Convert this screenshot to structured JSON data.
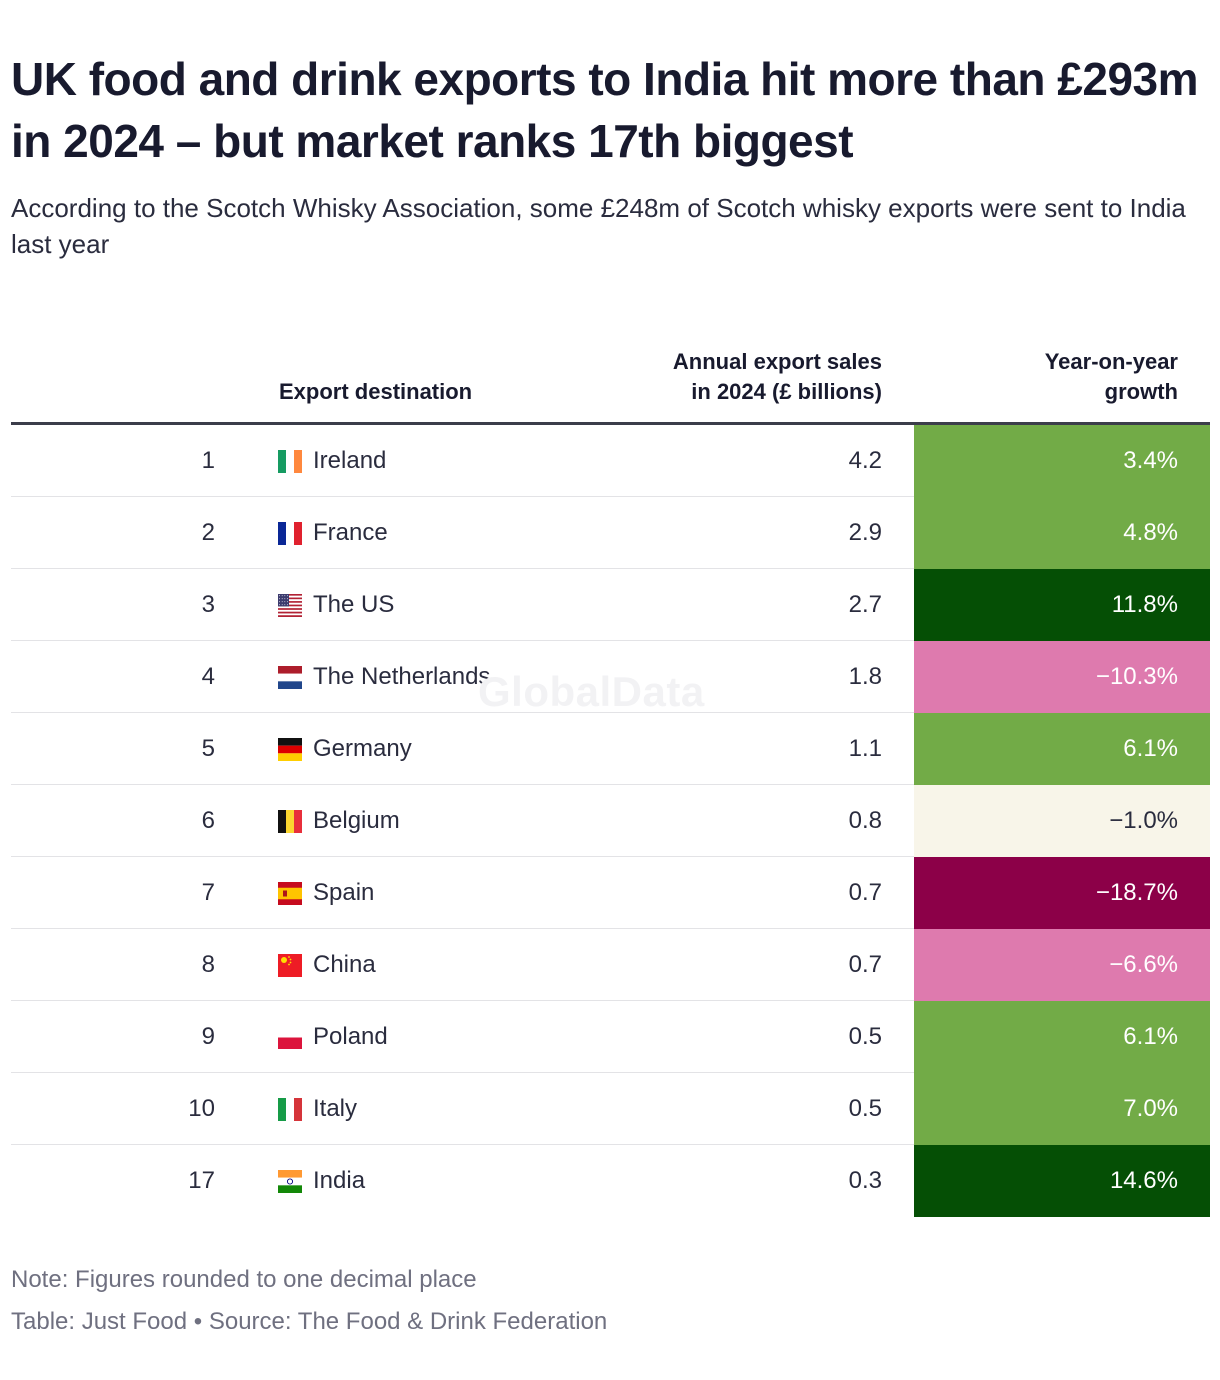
{
  "title": "UK food and drink exports to India hit more than £293m in 2024 – but market ranks 17th biggest",
  "subtitle": "According to the Scotch Whisky Association, some £248m of Scotch whisky exports were sent to India last year",
  "watermark": "GlobalData",
  "chart_data": {
    "type": "table",
    "columns": [
      "",
      "Export destination",
      "Annual export sales in 2024 (£ billions)",
      "Year-on-year growth"
    ],
    "column_headers": {
      "destination": "Export destination",
      "sales": [
        "Annual export sales",
        "in 2024 (£ billions)"
      ],
      "growth": [
        "Year-on-year",
        "growth"
      ]
    },
    "rows": [
      {
        "rank": "1",
        "country": "Ireland",
        "flag": "ireland-flag-icon",
        "sales": "4.2",
        "growth": "3.4%",
        "growth_value": 3.4,
        "color": "#72ab47",
        "text": "#ffffff"
      },
      {
        "rank": "2",
        "country": "France",
        "flag": "france-flag-icon",
        "sales": "2.9",
        "growth": "4.8%",
        "growth_value": 4.8,
        "color": "#72ab47",
        "text": "#ffffff"
      },
      {
        "rank": "3",
        "country": "The US",
        "flag": "us-flag-icon",
        "sales": "2.7",
        "growth": "11.8%",
        "growth_value": 11.8,
        "color": "#054f05",
        "text": "#ffffff"
      },
      {
        "rank": "4",
        "country": "The Netherlands",
        "flag": "netherlands-flag-icon",
        "sales": "1.8",
        "growth": "−10.3%",
        "growth_value": -10.3,
        "color": "#de7aae",
        "text": "#ffffff"
      },
      {
        "rank": "5",
        "country": "Germany",
        "flag": "germany-flag-icon",
        "sales": "1.1",
        "growth": "6.1%",
        "growth_value": 6.1,
        "color": "#72ab47",
        "text": "#ffffff"
      },
      {
        "rank": "6",
        "country": "Belgium",
        "flag": "belgium-flag-icon",
        "sales": "0.8",
        "growth": "−1.0%",
        "growth_value": -1.0,
        "color": "#f8f5e9",
        "text": "#2a2c3e"
      },
      {
        "rank": "7",
        "country": "Spain",
        "flag": "spain-flag-icon",
        "sales": "0.7",
        "growth": "−18.7%",
        "growth_value": -18.7,
        "color": "#8c0048",
        "text": "#ffffff"
      },
      {
        "rank": "8",
        "country": "China",
        "flag": "china-flag-icon",
        "sales": "0.7",
        "growth": "−6.6%",
        "growth_value": -6.6,
        "color": "#de7aae",
        "text": "#ffffff"
      },
      {
        "rank": "9",
        "country": "Poland",
        "flag": "poland-flag-icon",
        "sales": "0.5",
        "growth": "6.1%",
        "growth_value": 6.1,
        "color": "#72ab47",
        "text": "#ffffff"
      },
      {
        "rank": "10",
        "country": "Italy",
        "flag": "italy-flag-icon",
        "sales": "0.5",
        "growth": "7.0%",
        "growth_value": 7.0,
        "color": "#72ab47",
        "text": "#ffffff"
      },
      {
        "rank": "17",
        "country": "India",
        "flag": "india-flag-icon",
        "sales": "0.3",
        "growth": "14.6%",
        "growth_value": 14.6,
        "color": "#054f05",
        "text": "#ffffff"
      }
    ]
  },
  "footer": {
    "note": "Note: Figures rounded to one decimal place",
    "source": "Table: Just Food • Source: The Food & Drink Federation"
  }
}
